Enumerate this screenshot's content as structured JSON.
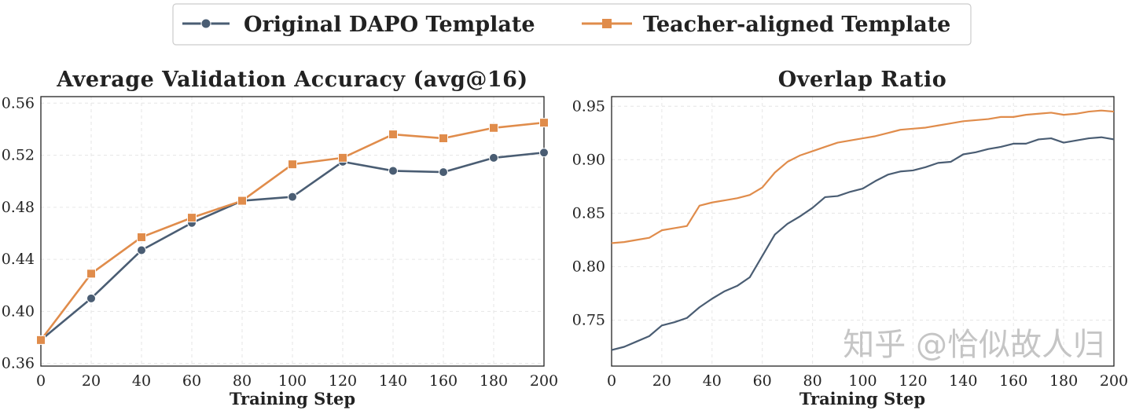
{
  "legend": {
    "entries": [
      {
        "name": "Original DAPO Template",
        "color": "#4a5d73",
        "marker": "circle"
      },
      {
        "name": "Teacher-aligned Template",
        "color": "#e08c4b",
        "marker": "square"
      }
    ],
    "placement": "top-center"
  },
  "watermark": "知乎 @恰似故人归",
  "chart_data": [
    {
      "type": "line",
      "title": "Average Validation Accuracy (avg@16)",
      "xlabel": "Training Step",
      "ylabel": "",
      "xlim": [
        0,
        200
      ],
      "ylim": [
        0.358,
        0.565
      ],
      "xticks": [
        0,
        20,
        40,
        60,
        80,
        100,
        120,
        140,
        160,
        180,
        200
      ],
      "yticks": [
        "0.36",
        "0.40",
        "0.44",
        "0.48",
        "0.52",
        "0.56"
      ],
      "grid": true,
      "x": [
        0,
        20,
        40,
        60,
        80,
        100,
        120,
        140,
        160,
        180,
        200
      ],
      "series": [
        {
          "name": "Original DAPO Template",
          "values": [
            0.378,
            0.41,
            0.447,
            0.468,
            0.485,
            0.488,
            0.515,
            0.508,
            0.507,
            0.518,
            0.522
          ]
        },
        {
          "name": "Teacher-aligned Template",
          "values": [
            0.378,
            0.429,
            0.457,
            0.472,
            0.485,
            0.513,
            0.518,
            0.536,
            0.533,
            0.541,
            0.545
          ]
        }
      ]
    },
    {
      "type": "line",
      "title": "Overlap Ratio",
      "xlabel": "Training Step",
      "ylabel": "",
      "xlim": [
        0,
        200
      ],
      "ylim": [
        0.707,
        0.959
      ],
      "xticks": [
        0,
        20,
        40,
        60,
        80,
        100,
        120,
        140,
        160,
        180,
        200
      ],
      "yticks": [
        "0.75",
        "0.80",
        "0.85",
        "0.90",
        "0.95"
      ],
      "grid": true,
      "x": [
        0,
        5,
        10,
        15,
        20,
        25,
        30,
        35,
        40,
        45,
        50,
        55,
        60,
        65,
        70,
        75,
        80,
        85,
        90,
        95,
        100,
        105,
        110,
        115,
        120,
        125,
        130,
        135,
        140,
        145,
        150,
        155,
        160,
        165,
        170,
        175,
        180,
        185,
        190,
        195,
        200
      ],
      "series": [
        {
          "name": "Original DAPO Template",
          "values": [
            0.722,
            0.725,
            0.73,
            0.735,
            0.745,
            0.748,
            0.752,
            0.762,
            0.77,
            0.777,
            0.782,
            0.79,
            0.81,
            0.83,
            0.84,
            0.847,
            0.855,
            0.865,
            0.866,
            0.87,
            0.873,
            0.88,
            0.886,
            0.889,
            0.89,
            0.893,
            0.897,
            0.898,
            0.905,
            0.907,
            0.91,
            0.912,
            0.915,
            0.915,
            0.919,
            0.92,
            0.916,
            0.918,
            0.92,
            0.921,
            0.919
          ]
        },
        {
          "name": "Teacher-aligned Template",
          "values": [
            0.822,
            0.823,
            0.825,
            0.827,
            0.834,
            0.836,
            0.838,
            0.857,
            0.86,
            0.862,
            0.864,
            0.867,
            0.874,
            0.888,
            0.898,
            0.904,
            0.908,
            0.912,
            0.916,
            0.918,
            0.92,
            0.922,
            0.925,
            0.928,
            0.929,
            0.93,
            0.932,
            0.934,
            0.936,
            0.937,
            0.938,
            0.94,
            0.94,
            0.942,
            0.943,
            0.944,
            0.942,
            0.943,
            0.945,
            0.946,
            0.945
          ]
        }
      ]
    }
  ]
}
